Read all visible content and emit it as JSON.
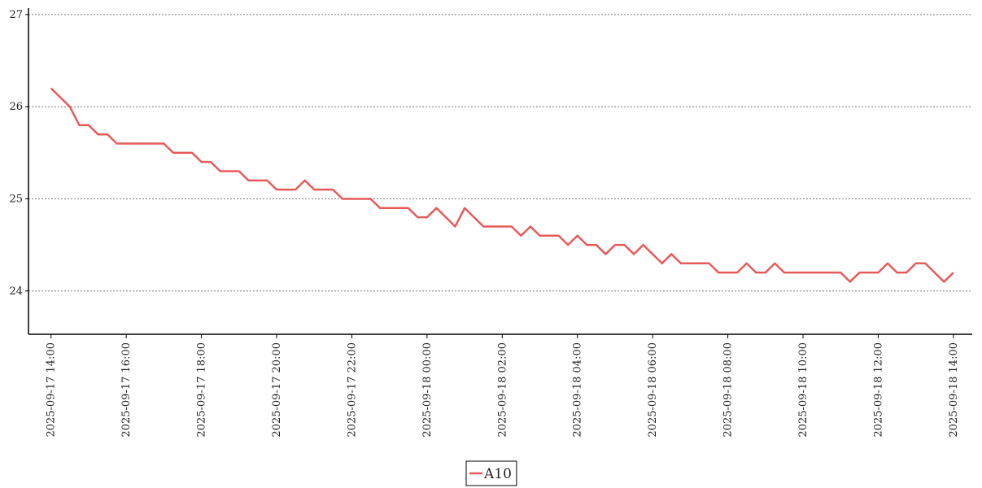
{
  "chart_data": {
    "type": "line",
    "x": [
      "2025-09-17 14:00",
      "2025-09-17 14:15",
      "2025-09-17 14:30",
      "2025-09-17 14:45",
      "2025-09-17 15:00",
      "2025-09-17 15:15",
      "2025-09-17 15:30",
      "2025-09-17 15:45",
      "2025-09-17 16:00",
      "2025-09-17 16:15",
      "2025-09-17 16:30",
      "2025-09-17 16:45",
      "2025-09-17 17:00",
      "2025-09-17 17:15",
      "2025-09-17 17:30",
      "2025-09-17 17:45",
      "2025-09-17 18:00",
      "2025-09-17 18:15",
      "2025-09-17 18:30",
      "2025-09-17 18:45",
      "2025-09-17 19:00",
      "2025-09-17 19:15",
      "2025-09-17 19:30",
      "2025-09-17 19:45",
      "2025-09-17 20:00",
      "2025-09-17 20:15",
      "2025-09-17 20:30",
      "2025-09-17 20:45",
      "2025-09-17 21:00",
      "2025-09-17 21:15",
      "2025-09-17 21:30",
      "2025-09-17 21:45",
      "2025-09-17 22:00",
      "2025-09-17 22:15",
      "2025-09-17 22:30",
      "2025-09-17 22:45",
      "2025-09-17 23:00",
      "2025-09-17 23:15",
      "2025-09-17 23:30",
      "2025-09-17 23:45",
      "2025-09-18 00:00",
      "2025-09-18 00:15",
      "2025-09-18 00:30",
      "2025-09-18 00:45",
      "2025-09-18 01:00",
      "2025-09-18 01:15",
      "2025-09-18 01:30",
      "2025-09-18 01:45",
      "2025-09-18 02:00",
      "2025-09-18 02:15",
      "2025-09-18 02:30",
      "2025-09-18 02:45",
      "2025-09-18 03:00",
      "2025-09-18 03:15",
      "2025-09-18 03:30",
      "2025-09-18 03:45",
      "2025-09-18 04:00",
      "2025-09-18 04:15",
      "2025-09-18 04:30",
      "2025-09-18 04:45",
      "2025-09-18 05:00",
      "2025-09-18 05:15",
      "2025-09-18 05:30",
      "2025-09-18 05:45",
      "2025-09-18 06:00",
      "2025-09-18 06:15",
      "2025-09-18 06:30",
      "2025-09-18 06:45",
      "2025-09-18 07:00",
      "2025-09-18 07:15",
      "2025-09-18 07:30",
      "2025-09-18 07:45",
      "2025-09-18 08:00",
      "2025-09-18 08:15",
      "2025-09-18 08:30",
      "2025-09-18 08:45",
      "2025-09-18 09:00",
      "2025-09-18 09:15",
      "2025-09-18 09:30",
      "2025-09-18 09:45",
      "2025-09-18 10:00",
      "2025-09-18 10:15",
      "2025-09-18 10:30",
      "2025-09-18 10:45",
      "2025-09-18 11:00",
      "2025-09-18 11:15",
      "2025-09-18 11:30",
      "2025-09-18 11:45",
      "2025-09-18 12:00",
      "2025-09-18 12:15",
      "2025-09-18 12:30",
      "2025-09-18 12:45",
      "2025-09-18 13:00",
      "2025-09-18 13:15",
      "2025-09-18 13:30",
      "2025-09-18 13:45",
      "2025-09-18 14:00"
    ],
    "series": [
      {
        "name": "A10",
        "color": "#e85a5a",
        "values": [
          26.2,
          26.1,
          26.0,
          25.8,
          25.8,
          25.7,
          25.7,
          25.6,
          25.6,
          25.6,
          25.6,
          25.6,
          25.6,
          25.5,
          25.5,
          25.5,
          25.4,
          25.4,
          25.3,
          25.3,
          25.3,
          25.2,
          25.2,
          25.2,
          25.1,
          25.1,
          25.1,
          25.2,
          25.1,
          25.1,
          25.1,
          25.0,
          25.0,
          25.0,
          25.0,
          24.9,
          24.9,
          24.9,
          24.9,
          24.8,
          24.8,
          24.9,
          24.8,
          24.7,
          24.9,
          24.8,
          24.7,
          24.7,
          24.7,
          24.7,
          24.6,
          24.7,
          24.6,
          24.6,
          24.6,
          24.5,
          24.6,
          24.5,
          24.5,
          24.4,
          24.5,
          24.5,
          24.4,
          24.5,
          24.4,
          24.3,
          24.4,
          24.3,
          24.3,
          24.3,
          24.3,
          24.2,
          24.2,
          24.2,
          24.3,
          24.2,
          24.2,
          24.3,
          24.2,
          24.2,
          24.2,
          24.2,
          24.2,
          24.2,
          24.2,
          24.1,
          24.2,
          24.2,
          24.2,
          24.3,
          24.2,
          24.2,
          24.3,
          24.3,
          24.2,
          24.1,
          24.2
        ]
      }
    ],
    "xticks": [
      "2025-09-17 14:00",
      "2025-09-17 16:00",
      "2025-09-17 18:00",
      "2025-09-17 20:00",
      "2025-09-17 22:00",
      "2025-09-18 00:00",
      "2025-09-18 02:00",
      "2025-09-18 04:00",
      "2025-09-18 06:00",
      "2025-09-18 08:00",
      "2025-09-18 10:00",
      "2025-09-18 12:00",
      "2025-09-18 14:00"
    ],
    "xlim": [
      "2025-09-17 13:24",
      "2025-09-18 14:30"
    ],
    "ylim": [
      23.53,
      27.07
    ],
    "yticks": [
      24,
      25,
      26,
      27
    ],
    "grid": true,
    "legend": "bottom"
  }
}
